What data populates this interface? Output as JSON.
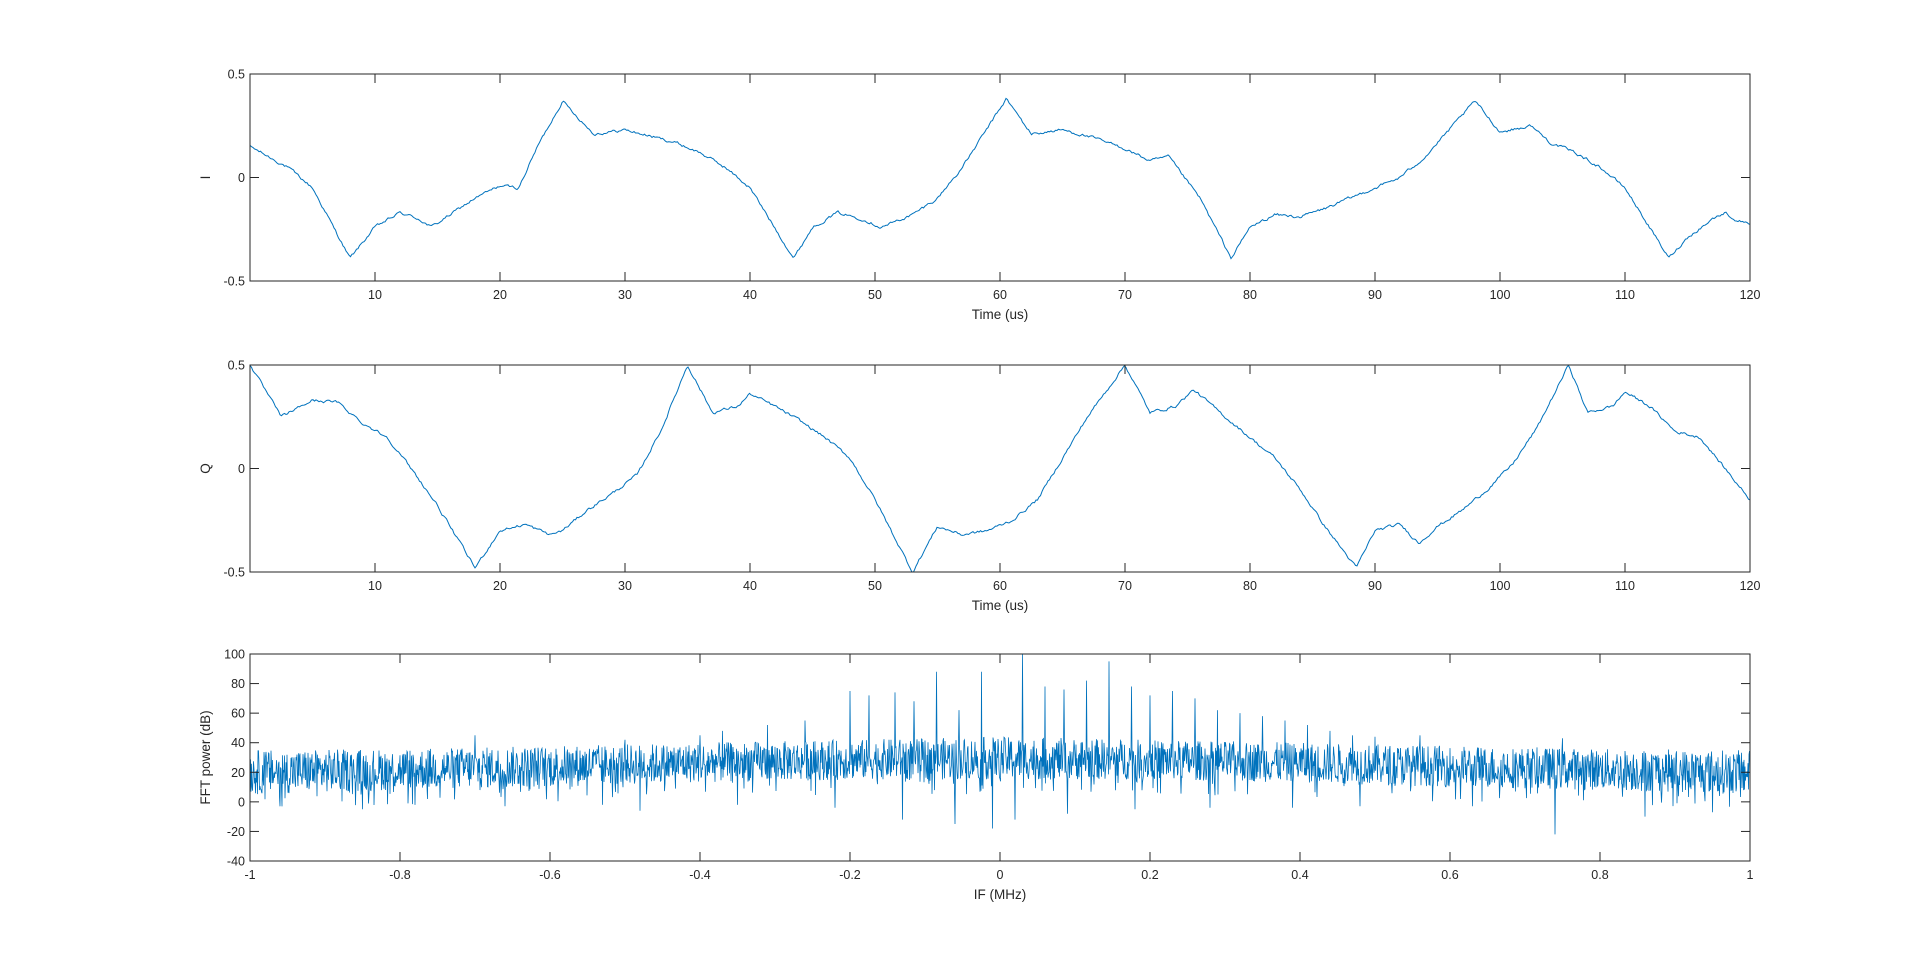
{
  "colors": {
    "trace": "#0072BD",
    "axes": "#262626",
    "background": "#ffffff"
  },
  "chart_data": [
    {
      "id": "i-plot",
      "type": "line",
      "xlabel": "Time (us)",
      "ylabel": "I",
      "xlim": [
        0,
        120
      ],
      "ylim": [
        -0.5,
        0.5
      ],
      "xticks": [
        10,
        20,
        30,
        40,
        50,
        60,
        70,
        80,
        90,
        100,
        110,
        120
      ],
      "xtick_labels": [
        "10",
        "20",
        "30",
        "40",
        "50",
        "60",
        "70",
        "80",
        "90",
        "100",
        "110",
        "120"
      ],
      "yticks": [
        -0.5,
        0,
        0.5
      ],
      "ytick_labels": [
        "-0.5",
        "0",
        "0.5"
      ],
      "grid": false,
      "series": [
        {
          "color": "#0072BD",
          "x": [
            0,
            1.5,
            3,
            5,
            8,
            10,
            12,
            13.5,
            14.5,
            16,
            18,
            20,
            21.5,
            23,
            25,
            27.5,
            30,
            32,
            34,
            36,
            38,
            40,
            43.5,
            45,
            47,
            49,
            50.5,
            53,
            55,
            57,
            60.5,
            62.5,
            65,
            67,
            70,
            72,
            73.5,
            76,
            78.5,
            80,
            82,
            84,
            86,
            88,
            90,
            92,
            94,
            95.5,
            98,
            100,
            102.5,
            104,
            106,
            108,
            110,
            113.5,
            115,
            117,
            118,
            119,
            120
          ],
          "y": [
            0.15,
            0.1,
            0.05,
            -0.05,
            -0.39,
            -0.24,
            -0.17,
            -0.2,
            -0.24,
            -0.18,
            -0.1,
            -0.04,
            -0.05,
            0.15,
            0.37,
            0.21,
            0.23,
            0.2,
            0.17,
            0.12,
            0.05,
            -0.05,
            -0.39,
            -0.24,
            -0.17,
            -0.2,
            -0.24,
            -0.18,
            -0.1,
            0.05,
            0.38,
            0.21,
            0.23,
            0.2,
            0.14,
            0.08,
            0.1,
            -0.1,
            -0.39,
            -0.24,
            -0.18,
            -0.19,
            -0.15,
            -0.1,
            -0.05,
            0.0,
            0.1,
            0.2,
            0.37,
            0.22,
            0.25,
            0.17,
            0.12,
            0.05,
            -0.05,
            -0.39,
            -0.29,
            -0.2,
            -0.17,
            -0.21,
            -0.22
          ]
        }
      ]
    },
    {
      "id": "q-plot",
      "type": "line",
      "xlabel": "Time (us)",
      "ylabel": "Q",
      "xlim": [
        0,
        120
      ],
      "ylim": [
        -0.5,
        0.5
      ],
      "xticks": [
        10,
        20,
        30,
        40,
        50,
        60,
        70,
        80,
        90,
        100,
        110,
        120
      ],
      "xtick_labels": [
        "10",
        "20",
        "30",
        "40",
        "50",
        "60",
        "70",
        "80",
        "90",
        "100",
        "110",
        "120"
      ],
      "yticks": [
        -0.5,
        0,
        0.5
      ],
      "ytick_labels": [
        "-0.5",
        "0",
        "0.5"
      ],
      "grid": false,
      "series": [
        {
          "color": "#0072BD",
          "x": [
            0,
            2.5,
            5,
            7,
            9,
            11,
            13.5,
            15,
            18,
            20,
            22,
            24,
            25,
            27,
            29,
            31,
            33,
            35,
            37,
            39,
            40,
            42,
            44,
            46,
            48,
            50,
            53,
            55,
            57,
            59,
            61,
            63,
            65,
            67,
            70,
            72,
            74,
            75.5,
            78,
            80,
            82,
            84,
            86,
            88.5,
            90,
            92,
            93.5,
            95,
            97,
            99,
            101,
            103,
            105.5,
            107,
            109,
            110,
            112,
            114,
            116,
            118,
            120
          ],
          "y": [
            0.5,
            0.25,
            0.33,
            0.32,
            0.22,
            0.15,
            -0.05,
            -0.18,
            -0.48,
            -0.3,
            -0.27,
            -0.32,
            -0.3,
            -0.2,
            -0.12,
            -0.03,
            0.2,
            0.5,
            0.27,
            0.3,
            0.36,
            0.3,
            0.23,
            0.15,
            0.05,
            -0.15,
            -0.5,
            -0.28,
            -0.32,
            -0.3,
            -0.25,
            -0.15,
            0.05,
            0.25,
            0.5,
            0.27,
            0.3,
            0.38,
            0.25,
            0.15,
            0.05,
            -0.1,
            -0.28,
            -0.48,
            -0.3,
            -0.27,
            -0.36,
            -0.28,
            -0.2,
            -0.1,
            0.02,
            0.2,
            0.5,
            0.27,
            0.3,
            0.37,
            0.3,
            0.18,
            0.15,
            0.0,
            -0.15
          ]
        }
      ]
    },
    {
      "id": "fft-plot",
      "type": "line",
      "xlabel": "IF (MHz)",
      "ylabel": "FFT power (dB)",
      "xlim": [
        -1,
        1
      ],
      "ylim": [
        -40,
        100
      ],
      "xticks": [
        -1,
        -0.8,
        -0.6,
        -0.4,
        -0.2,
        0,
        0.2,
        0.4,
        0.6,
        0.8,
        1
      ],
      "xtick_labels": [
        "-1",
        "-0.8",
        "-0.6",
        "-0.4",
        "-0.2",
        "0",
        "0.2",
        "0.4",
        "0.6",
        "0.8",
        "1"
      ],
      "yticks": [
        -40,
        -20,
        0,
        20,
        40,
        60,
        80,
        100
      ],
      "ytick_labels": [
        "-40",
        "-20",
        "0",
        "20",
        "40",
        "60",
        "80",
        "100"
      ],
      "grid": false,
      "noise_floor": {
        "x": [
          -1,
          -0.8,
          -0.6,
          -0.4,
          -0.2,
          0,
          0.2,
          0.4,
          0.6,
          0.8,
          1
        ],
        "upper": [
          35,
          36,
          38,
          40,
          42,
          44,
          42,
          40,
          38,
          36,
          35
        ],
        "lower": [
          5,
          8,
          10,
          13,
          15,
          15,
          15,
          13,
          10,
          8,
          5
        ]
      },
      "peaks": {
        "x": [
          -0.7,
          -0.5,
          -0.4,
          -0.37,
          -0.31,
          -0.26,
          -0.2,
          -0.175,
          -0.14,
          -0.115,
          -0.085,
          -0.055,
          -0.025,
          0.03,
          0.06,
          0.085,
          0.115,
          0.145,
          0.175,
          0.2,
          0.23,
          0.26,
          0.29,
          0.32,
          0.35,
          0.38,
          0.41,
          0.44,
          0.47,
          0.5,
          0.56,
          0.75
        ],
        "y": [
          45,
          42,
          45,
          48,
          52,
          55,
          75,
          72,
          74,
          68,
          88,
          62,
          88,
          100,
          78,
          76,
          82,
          95,
          78,
          72,
          75,
          70,
          62,
          60,
          58,
          55,
          52,
          48,
          45,
          44,
          45,
          43
        ]
      },
      "dips": {
        "x": [
          -0.96,
          -0.85,
          -0.78,
          -0.66,
          -0.53,
          -0.48,
          -0.35,
          -0.22,
          -0.13,
          -0.06,
          -0.01,
          0.02,
          0.09,
          0.18,
          0.28,
          0.39,
          0.48,
          0.63,
          0.74,
          0.86,
          0.95
        ],
        "y": [
          -3,
          -5,
          -2,
          -3,
          -2,
          -6,
          -2,
          -4,
          -12,
          -15,
          -18,
          -12,
          -8,
          -5,
          -4,
          -4,
          -3,
          -3,
          -22,
          -10,
          -7
        ]
      }
    }
  ]
}
